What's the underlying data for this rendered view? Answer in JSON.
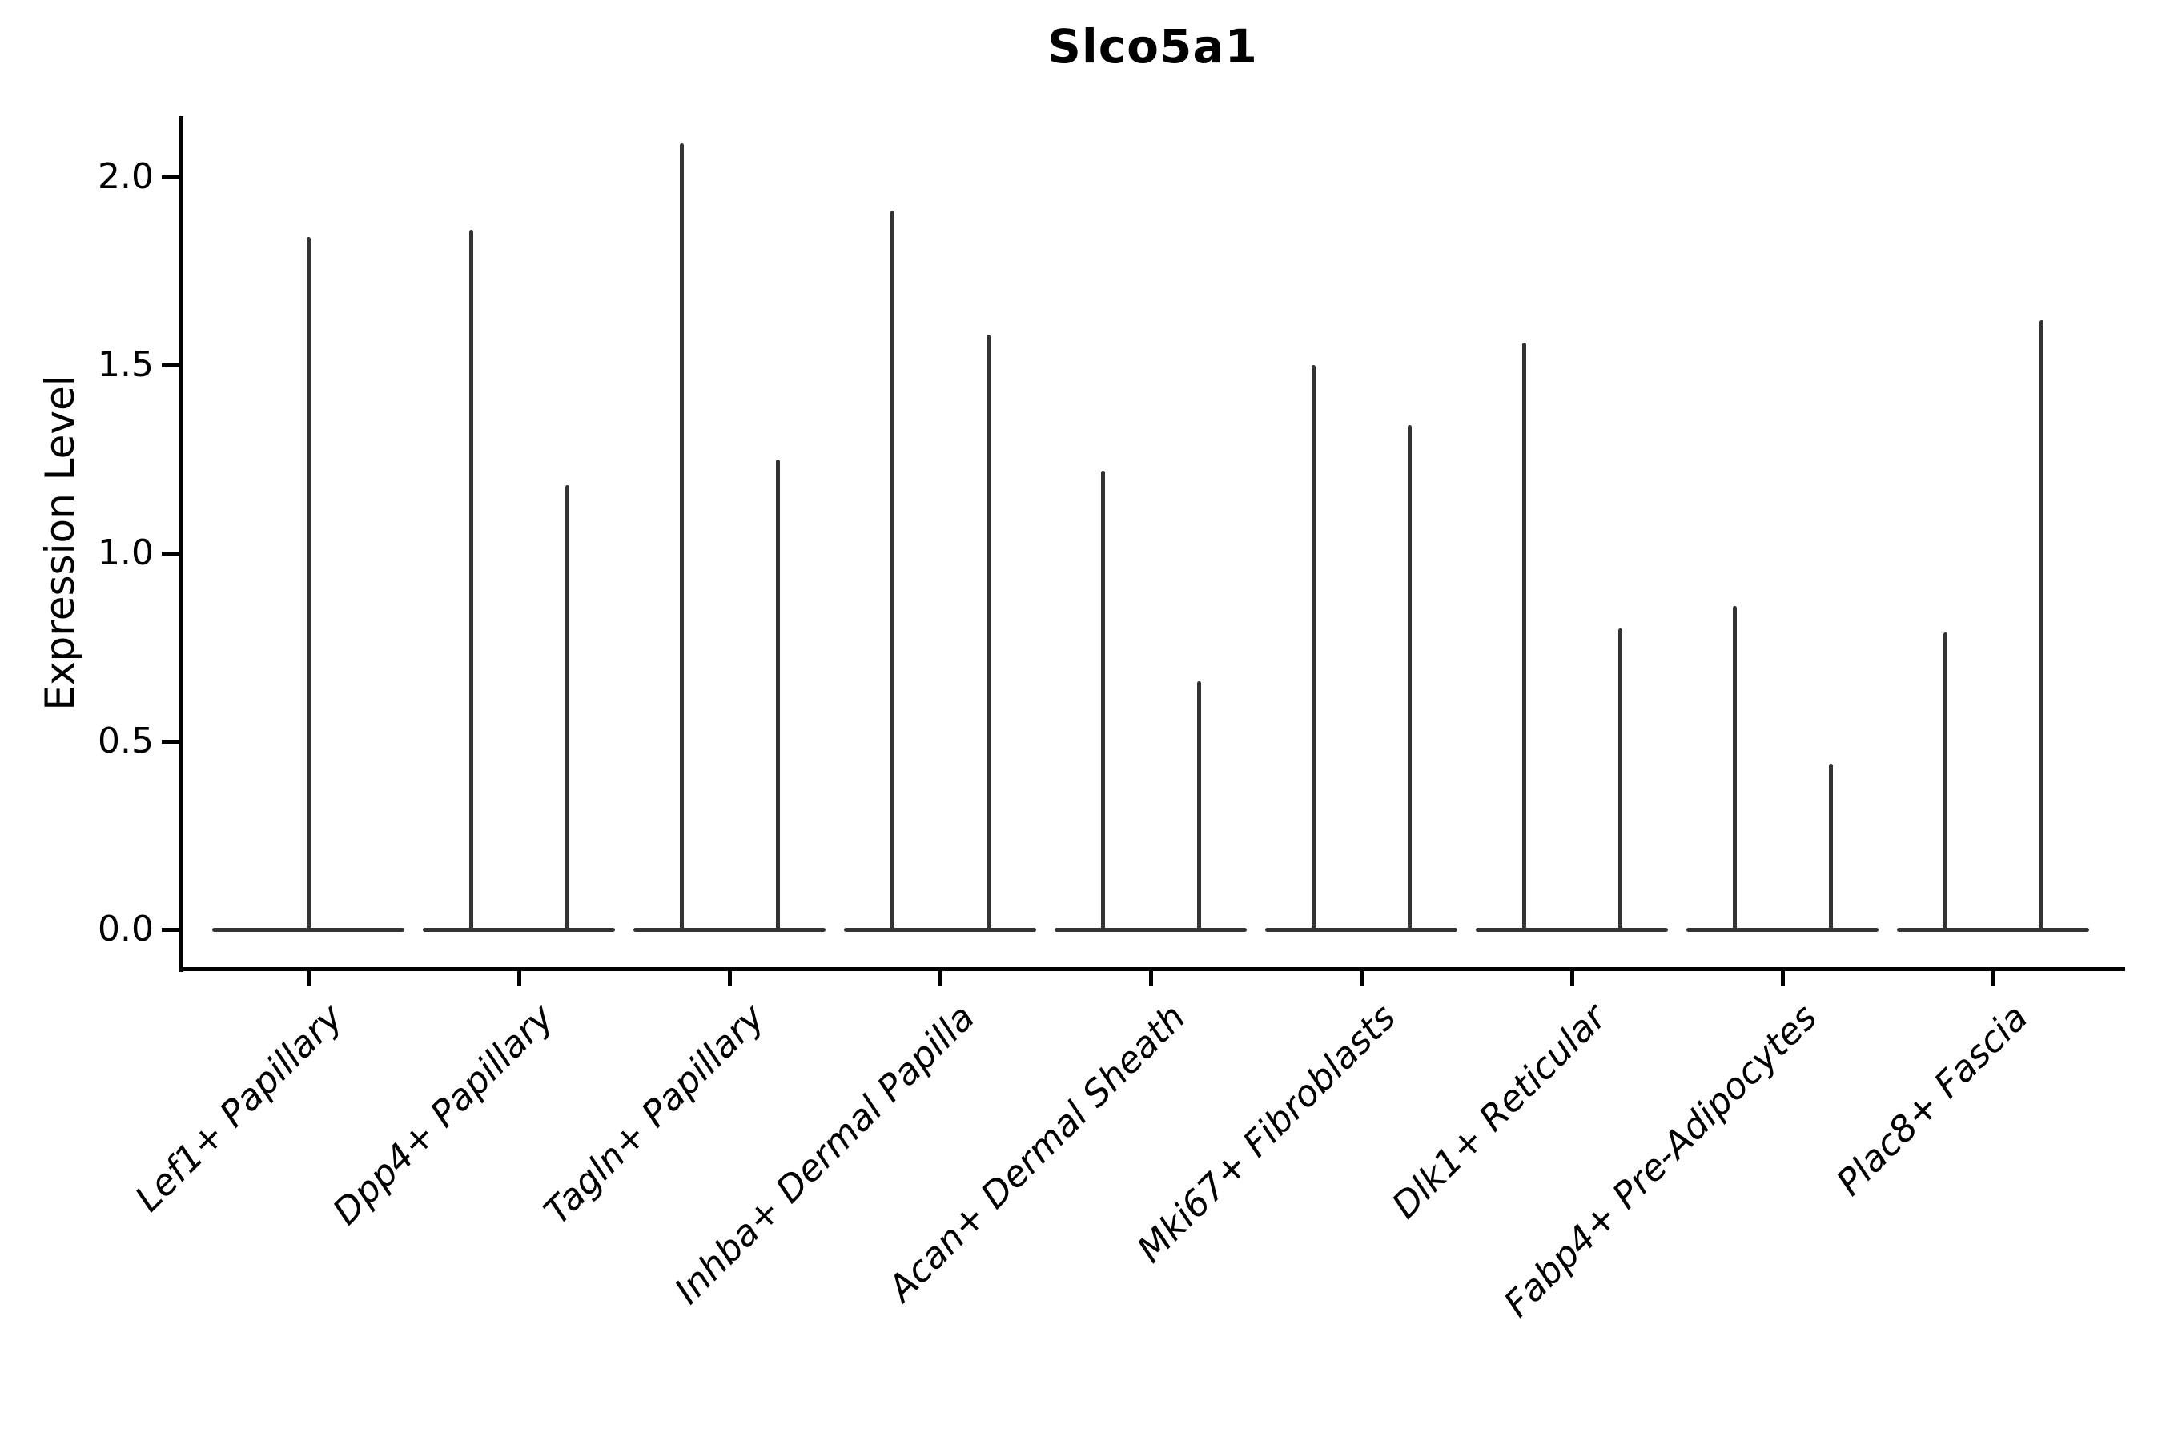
{
  "title": "Slco5a1",
  "chart_data": {
    "type": "violin",
    "title": "Slco5a1",
    "ylabel": "Expression Level",
    "xlabel": "",
    "ylim": [
      -0.11,
      2.16
    ],
    "yticks": [
      0.0,
      0.5,
      1.0,
      1.5,
      2.0
    ],
    "ytick_labels": [
      "0.0",
      "0.5",
      "1.0",
      "1.5",
      "2.0"
    ],
    "grid": false,
    "legend": "none",
    "background_color": "#ffffff",
    "axis_color": "#000000",
    "violin_color": "#333333",
    "xtick_label_style": "italic, rotated 45deg",
    "baseline_value": 0.0,
    "categories": [
      {
        "label": "Lef1+ Papillary",
        "violin_max": [
          1.84
        ]
      },
      {
        "label": "Dpp4+ Papillary",
        "violin_max": [
          1.86,
          1.18
        ]
      },
      {
        "label": "Tagln+ Papillary",
        "violin_max": [
          2.09,
          1.25
        ]
      },
      {
        "label": "Inhba+ Dermal Papilla",
        "violin_max": [
          1.91,
          1.58
        ]
      },
      {
        "label": "Acan+ Dermal Sheath",
        "violin_max": [
          1.22,
          0.66
        ]
      },
      {
        "label": "Mki67+ Fibroblasts",
        "violin_max": [
          1.5,
          1.34
        ]
      },
      {
        "label": "Dlk1+ Reticular",
        "violin_max": [
          1.56,
          0.8
        ]
      },
      {
        "label": "Fabp4+ Pre-Adipocytes",
        "violin_max": [
          0.86,
          0.44
        ]
      },
      {
        "label": "Plac8+ Fascia",
        "violin_max": [
          0.79,
          1.62
        ]
      }
    ]
  }
}
